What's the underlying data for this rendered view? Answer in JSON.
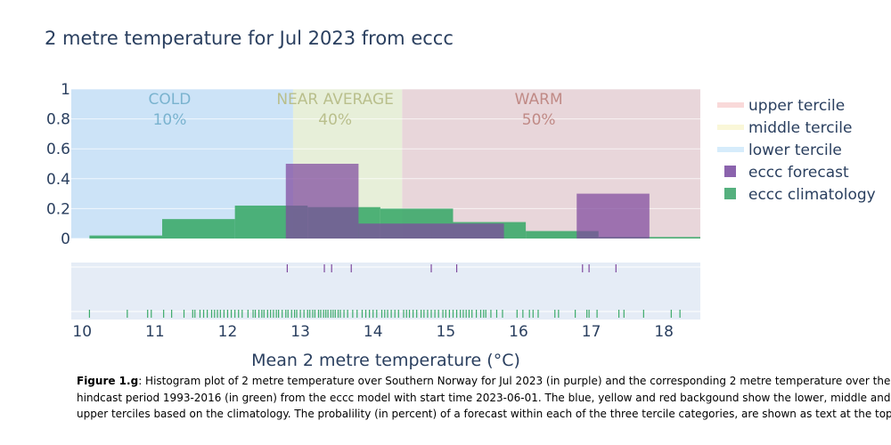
{
  "title": "2 metre temperature for Jul 2023 from eccc",
  "caption": {
    "label": "Figure 1.g",
    "line1": ": Histogram plot of 2 metre temperature over Southern Norway for Jul 2023 (in purple) and the corresponding 2 metre temperature over the",
    "line2": "hindcast period 1993-2016 (in green) from the eccc model with start time 2023-06-01. The blue, yellow and red backgound show the lower, middle and",
    "line3": "upper terciles based on the climatology. The probalility (in percent) of a forecast within each of the three tercile categories, are shown as text at the top"
  },
  "colors": {
    "forecast": "#7f4a9e",
    "climatology": "#3daa6a",
    "lower_tercile": "#cce3f7",
    "middle_tercile": "#e7efd9",
    "upper_tercile": "#e8d6da",
    "cold_text": "#7ab3cf",
    "near_text": "#b9bf8c",
    "warm_text": "#c08a86",
    "rug_bg": "#e5ecf6"
  },
  "legend": [
    {
      "label": "upper tercile",
      "color": "#f9d9d9",
      "kind": "line"
    },
    {
      "label": "middle tercile",
      "color": "#faf7d8",
      "kind": "line"
    },
    {
      "label": "lower tercile",
      "color": "#d6ecfb",
      "kind": "line"
    },
    {
      "label": "eccc forecast",
      "color": "#8b63ad",
      "kind": "square"
    },
    {
      "label": "eccc climatology",
      "color": "#55b07e",
      "kind": "square"
    }
  ],
  "chart_data": {
    "type": "bar",
    "title": "2 metre temperature for Jul 2023 from eccc",
    "xlabel": "Mean 2 metre temperature (°C)",
    "ylabel": "",
    "xlim": [
      9.85,
      18.5
    ],
    "ylim": [
      0,
      1
    ],
    "x_ticks": [
      10,
      11,
      12,
      13,
      14,
      15,
      16,
      17,
      18
    ],
    "y_ticks": [
      {
        "v": 0,
        "label": "0"
      },
      {
        "v": 0.2,
        "label": "0.2"
      },
      {
        "v": 0.4,
        "label": "0.4"
      },
      {
        "v": 0.6,
        "label": "0.6"
      },
      {
        "v": 0.8,
        "label": "0.8"
      },
      {
        "v": 1,
        "label": "1"
      }
    ],
    "terciles": {
      "lower": 12.9,
      "upper": 14.4
    },
    "categories": [
      {
        "name": "COLD",
        "prob": "10%"
      },
      {
        "name": "NEAR AVERAGE",
        "prob": "40%"
      },
      {
        "name": "WARM",
        "prob": "50%"
      }
    ],
    "climatology_bins": [
      {
        "x0": 10.1,
        "x1": 11.1,
        "y": 0.02
      },
      {
        "x0": 11.1,
        "x1": 12.1,
        "y": 0.13
      },
      {
        "x0": 12.1,
        "x1": 13.1,
        "y": 0.22
      },
      {
        "x0": 13.1,
        "x1": 14.1,
        "y": 0.21
      },
      {
        "x0": 14.1,
        "x1": 15.1,
        "y": 0.2
      },
      {
        "x0": 15.1,
        "x1": 16.1,
        "y": 0.11
      },
      {
        "x0": 16.1,
        "x1": 17.1,
        "y": 0.05
      },
      {
        "x0": 17.1,
        "x1": 18.5,
        "y": 0.01
      }
    ],
    "forecast_bins": [
      {
        "x0": 12.8,
        "x1": 13.8,
        "y": 0.5
      },
      {
        "x0": 13.8,
        "x1": 14.8,
        "y": 0.1
      },
      {
        "x0": 14.8,
        "x1": 15.8,
        "y": 0.1
      },
      {
        "x0": 15.8,
        "x1": 16.8,
        "y": 0.0
      },
      {
        "x0": 16.8,
        "x1": 17.8,
        "y": 0.3
      }
    ],
    "forecast_rug": [
      12.82,
      13.33,
      13.43,
      13.7,
      14.8,
      15.15,
      16.88,
      16.97,
      17.34
    ],
    "climatology_rug": [
      10.1,
      10.62,
      10.9,
      10.95,
      11.12,
      11.23,
      11.4,
      11.52,
      11.55,
      11.62,
      11.67,
      11.72,
      11.78,
      11.82,
      11.86,
      11.9,
      11.95,
      12.0,
      12.05,
      12.1,
      12.15,
      12.2,
      12.28,
      12.35,
      12.38,
      12.43,
      12.47,
      12.5,
      12.55,
      12.59,
      12.63,
      12.67,
      12.7,
      12.75,
      12.8,
      12.83,
      12.88,
      12.92,
      12.95,
      13.0,
      13.05,
      13.1,
      13.13,
      13.17,
      13.2,
      13.25,
      13.28,
      13.32,
      13.35,
      13.38,
      13.42,
      13.45,
      13.48,
      13.52,
      13.55,
      13.6,
      13.65,
      13.72,
      13.78,
      13.85,
      13.9,
      13.95,
      14.0,
      14.05,
      14.12,
      14.16,
      14.2,
      14.25,
      14.3,
      14.35,
      14.42,
      14.46,
      14.5,
      14.55,
      14.6,
      14.66,
      14.7,
      14.75,
      14.8,
      14.85,
      14.9,
      14.96,
      15.0,
      15.05,
      15.1,
      15.15,
      15.2,
      15.24,
      15.28,
      15.32,
      15.36,
      15.42,
      15.48,
      15.52,
      15.55,
      15.62,
      15.7,
      15.78,
      15.98,
      16.06,
      16.15,
      16.2,
      16.27,
      16.5,
      16.55,
      16.78,
      16.94,
      16.97,
      17.08,
      17.38,
      17.45,
      17.72,
      18.1,
      18.22
    ]
  }
}
